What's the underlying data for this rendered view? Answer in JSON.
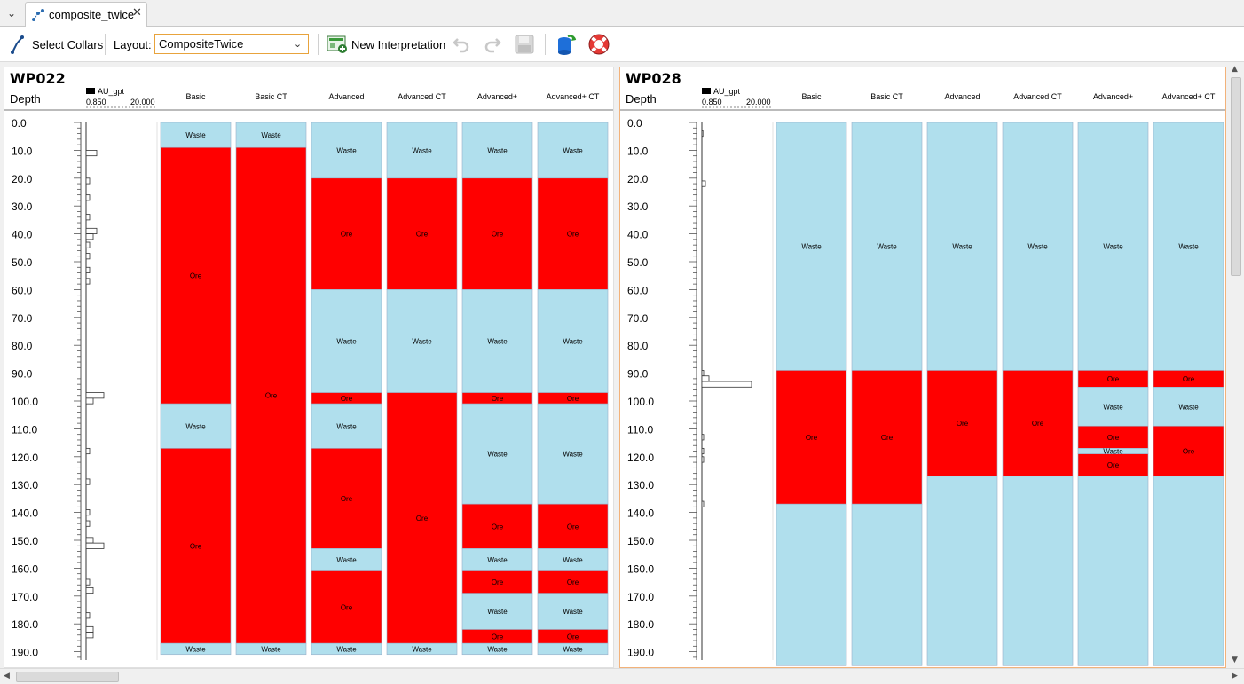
{
  "tab": {
    "title": "composite_twice",
    "close": "✕",
    "menu": "⌄",
    "icon": "graph-icon"
  },
  "toolbar": {
    "select_collars": "Select Collars",
    "layout_label": "Layout:",
    "layout_value": "CompositeTwice",
    "new_interpretation": "New Interpretation"
  },
  "colors": {
    "ore": "#ff0000",
    "waste": "#b0dfed",
    "panel_border_active": "#f2b27a"
  },
  "depth": {
    "label": "Depth",
    "max": 190,
    "ticks": [
      "0.0",
      "10.0",
      "20.0",
      "30.0",
      "40.0",
      "50.0",
      "60.0",
      "70.0",
      "80.0",
      "90.0",
      "100.0",
      "110.0",
      "120.0",
      "130.0",
      "140.0",
      "150.0",
      "160.0",
      "170.0",
      "180.0",
      "190.0"
    ]
  },
  "assay": {
    "name": "AU_gpt",
    "min_label": "0.850",
    "max_label": "20.000"
  },
  "columns": [
    "Basic",
    "Basic CT",
    "Advanced",
    "Advanced CT",
    "Advanced+",
    "Advanced+ CT"
  ],
  "holes": [
    {
      "name": "WP022",
      "assay_bars": [
        [
          10,
          12,
          3
        ],
        [
          20,
          22,
          1
        ],
        [
          26,
          28,
          1
        ],
        [
          33,
          35,
          1
        ],
        [
          38,
          40,
          3
        ],
        [
          40,
          42,
          2
        ],
        [
          43,
          45,
          1
        ],
        [
          47,
          49,
          1
        ],
        [
          52,
          54,
          1
        ],
        [
          56,
          58,
          1
        ],
        [
          97,
          99,
          5
        ],
        [
          99,
          101,
          2
        ],
        [
          117,
          119,
          1
        ],
        [
          128,
          130,
          1
        ],
        [
          139,
          141,
          1
        ],
        [
          143,
          145,
          1
        ],
        [
          149,
          151,
          2
        ],
        [
          151,
          153,
          5
        ],
        [
          164,
          166,
          1
        ],
        [
          167,
          169,
          2
        ],
        [
          176,
          178,
          1
        ],
        [
          181,
          183,
          2
        ],
        [
          183,
          185,
          2
        ]
      ],
      "intervals": [
        [
          {
            "from": 0,
            "to": 9,
            "label": "Waste"
          },
          {
            "from": 9,
            "to": 101,
            "label": "Ore"
          },
          {
            "from": 101,
            "to": 117,
            "label": "Waste"
          },
          {
            "from": 117,
            "to": 187,
            "label": "Ore"
          },
          {
            "from": 187,
            "to": 191,
            "label": "Waste"
          }
        ],
        [
          {
            "from": 0,
            "to": 9,
            "label": "Waste"
          },
          {
            "from": 9,
            "to": 187,
            "label": "Ore"
          },
          {
            "from": 187,
            "to": 191,
            "label": "Waste"
          }
        ],
        [
          {
            "from": 0,
            "to": 20,
            "label": "Waste"
          },
          {
            "from": 20,
            "to": 60,
            "label": "Ore"
          },
          {
            "from": 60,
            "to": 97,
            "label": "Waste"
          },
          {
            "from": 97,
            "to": 101,
            "label": "Ore"
          },
          {
            "from": 101,
            "to": 117,
            "label": "Waste"
          },
          {
            "from": 117,
            "to": 153,
            "label": "Ore"
          },
          {
            "from": 153,
            "to": 161,
            "label": "Waste"
          },
          {
            "from": 161,
            "to": 187,
            "label": "Ore"
          },
          {
            "from": 187,
            "to": 191,
            "label": "Waste"
          }
        ],
        [
          {
            "from": 0,
            "to": 20,
            "label": "Waste"
          },
          {
            "from": 20,
            "to": 60,
            "label": "Ore"
          },
          {
            "from": 60,
            "to": 97,
            "label": "Waste"
          },
          {
            "from": 97,
            "to": 187,
            "label": "Ore"
          },
          {
            "from": 187,
            "to": 191,
            "label": "Waste"
          }
        ],
        [
          {
            "from": 0,
            "to": 20,
            "label": "Waste"
          },
          {
            "from": 20,
            "to": 60,
            "label": "Ore"
          },
          {
            "from": 60,
            "to": 97,
            "label": "Waste"
          },
          {
            "from": 97,
            "to": 101,
            "label": "Ore"
          },
          {
            "from": 101,
            "to": 137,
            "label": "Waste"
          },
          {
            "from": 137,
            "to": 153,
            "label": "Ore"
          },
          {
            "from": 153,
            "to": 161,
            "label": "Waste"
          },
          {
            "from": 161,
            "to": 169,
            "label": "Ore"
          },
          {
            "from": 169,
            "to": 182,
            "label": "Waste"
          },
          {
            "from": 182,
            "to": 187,
            "label": "Ore"
          },
          {
            "from": 187,
            "to": 191,
            "label": "Waste"
          }
        ],
        [
          {
            "from": 0,
            "to": 20,
            "label": "Waste"
          },
          {
            "from": 20,
            "to": 60,
            "label": "Ore"
          },
          {
            "from": 60,
            "to": 97,
            "label": "Waste"
          },
          {
            "from": 97,
            "to": 101,
            "label": "Ore"
          },
          {
            "from": 101,
            "to": 137,
            "label": "Waste"
          },
          {
            "from": 137,
            "to": 153,
            "label": "Ore"
          },
          {
            "from": 153,
            "to": 161,
            "label": "Waste"
          },
          {
            "from": 161,
            "to": 169,
            "label": "Ore"
          },
          {
            "from": 169,
            "to": 182,
            "label": "Waste"
          },
          {
            "from": 182,
            "to": 187,
            "label": "Ore"
          },
          {
            "from": 187,
            "to": 191,
            "label": "Waste"
          }
        ]
      ]
    },
    {
      "name": "WP028",
      "assay_bars": [
        [
          3,
          5,
          0.3
        ],
        [
          21,
          23,
          1
        ],
        [
          89,
          91,
          0.5
        ],
        [
          91,
          93,
          2
        ],
        [
          93,
          95,
          14
        ],
        [
          112,
          114,
          0.5
        ],
        [
          117,
          119,
          0.5
        ],
        [
          120,
          122,
          0.5
        ],
        [
          136,
          138,
          0.5
        ]
      ],
      "intervals": [
        [
          {
            "from": 0,
            "to": 89,
            "label": "Waste"
          },
          {
            "from": 89,
            "to": 137,
            "label": "Ore"
          },
          {
            "from": 137,
            "to": 195,
            "label": ""
          }
        ],
        [
          {
            "from": 0,
            "to": 89,
            "label": "Waste"
          },
          {
            "from": 89,
            "to": 137,
            "label": "Ore"
          },
          {
            "from": 137,
            "to": 195,
            "label": ""
          }
        ],
        [
          {
            "from": 0,
            "to": 89,
            "label": "Waste"
          },
          {
            "from": 89,
            "to": 127,
            "label": "Ore"
          },
          {
            "from": 127,
            "to": 195,
            "label": ""
          }
        ],
        [
          {
            "from": 0,
            "to": 89,
            "label": "Waste"
          },
          {
            "from": 89,
            "to": 127,
            "label": "Ore"
          },
          {
            "from": 127,
            "to": 195,
            "label": ""
          }
        ],
        [
          {
            "from": 0,
            "to": 89,
            "label": "Waste"
          },
          {
            "from": 89,
            "to": 95,
            "label": "Ore"
          },
          {
            "from": 95,
            "to": 109,
            "label": "Waste"
          },
          {
            "from": 109,
            "to": 117,
            "label": "Ore"
          },
          {
            "from": 117,
            "to": 119,
            "label": "Waste"
          },
          {
            "from": 119,
            "to": 127,
            "label": "Ore"
          },
          {
            "from": 127,
            "to": 195,
            "label": ""
          }
        ],
        [
          {
            "from": 0,
            "to": 89,
            "label": "Waste"
          },
          {
            "from": 89,
            "to": 95,
            "label": "Ore"
          },
          {
            "from": 95,
            "to": 109,
            "label": "Waste"
          },
          {
            "from": 109,
            "to": 127,
            "label": "Ore"
          },
          {
            "from": 127,
            "to": 195,
            "label": ""
          }
        ]
      ]
    }
  ]
}
